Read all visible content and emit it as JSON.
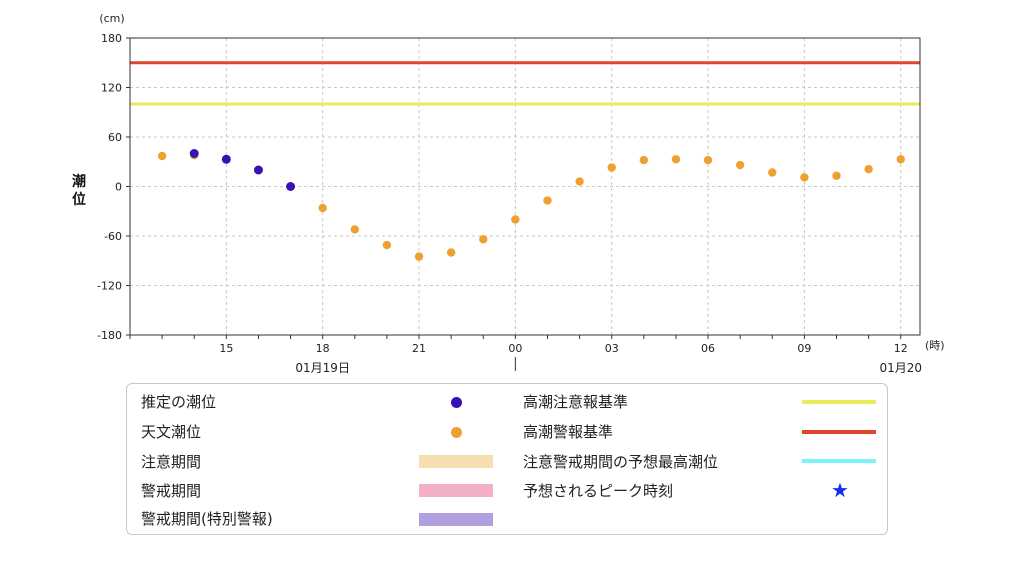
{
  "chart_data": {
    "type": "scatter",
    "yunit": "(cm)",
    "xunit": "(時)",
    "ylabel": "潮\n位",
    "ylim": [
      -180,
      180
    ],
    "yticks": [
      180,
      120,
      60,
      0,
      -60,
      -120,
      -180
    ],
    "xlim": [
      12.0,
      36.6
    ],
    "xticks": [
      {
        "x": 15,
        "label": "15"
      },
      {
        "x": 18,
        "label": "18"
      },
      {
        "x": 21,
        "label": "21"
      },
      {
        "x": 24,
        "label": "00"
      },
      {
        "x": 27,
        "label": "03"
      },
      {
        "x": 30,
        "label": "06"
      },
      {
        "x": 33,
        "label": "09"
      },
      {
        "x": 36,
        "label": "12"
      }
    ],
    "date_labels": [
      {
        "x": 18,
        "label": "01月19日"
      },
      {
        "x": 36,
        "label": "01月20"
      }
    ],
    "date_boundary_x": 24,
    "reference_lines": [
      {
        "name": "高潮警報基準",
        "y": 150,
        "color": "#e0442a"
      },
      {
        "name": "高潮注意報基準",
        "y": 100,
        "color": "#eaea5a"
      }
    ],
    "series": [
      {
        "name": "天文潮位",
        "color": "#f0a030",
        "x": [
          13,
          14,
          15,
          16,
          17,
          18,
          19,
          20,
          21,
          22,
          23,
          24,
          25,
          26,
          27,
          28,
          29,
          30,
          31,
          32,
          33,
          34,
          35,
          36
        ],
        "y": [
          37,
          38,
          33,
          20,
          0,
          -26,
          -52,
          -71,
          -85,
          -80,
          -64,
          -40,
          -17,
          6,
          23,
          32,
          33,
          32,
          26,
          17,
          11,
          13,
          21,
          33
        ]
      },
      {
        "name": "推定の潮位",
        "color": "#3a10b8",
        "x": [
          14,
          15,
          16,
          17
        ],
        "y": [
          40,
          33,
          20,
          0
        ]
      }
    ]
  },
  "legend": {
    "items": [
      {
        "label": "推定の潮位",
        "kind": "dot",
        "color": "#3a10b8"
      },
      {
        "label": "天文潮位",
        "kind": "dot",
        "color": "#f0a030"
      },
      {
        "label": "注意期間",
        "kind": "bar",
        "color": "#f7deb0"
      },
      {
        "label": "警戒期間",
        "kind": "bar",
        "color": "#f2b0c8"
      },
      {
        "label": "警戒期間(特別警報)",
        "kind": "bar",
        "color": "#b09ee0"
      },
      {
        "label": "高潮注意報基準",
        "kind": "line",
        "color": "#eaea5a"
      },
      {
        "label": "高潮警報基準",
        "kind": "line",
        "color": "#e0442a"
      },
      {
        "label": "注意警戒期間の予想最高潮位",
        "kind": "line",
        "color": "#7af4f8"
      },
      {
        "label": "予想されるピーク時刻",
        "kind": "star",
        "color": "#1030e8"
      }
    ]
  }
}
